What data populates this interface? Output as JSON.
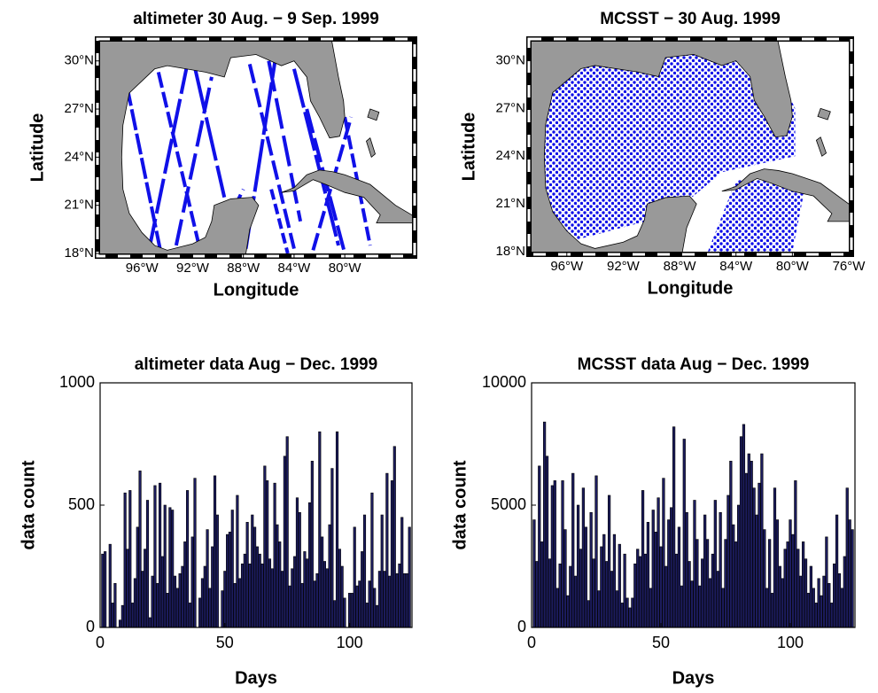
{
  "chart_data": [
    {
      "type": "map",
      "title": "altimeter 30 Aug. − 9 Sep. 1999",
      "xlabel": "Longitude",
      "ylabel": "Latitude",
      "xlim": [
        -99.3,
        -74.7
      ],
      "ylim": [
        18,
        31.2
      ],
      "xticks": [
        {
          "value": -96,
          "label": "96°W"
        },
        {
          "value": -92,
          "label": "92°W"
        },
        {
          "value": -88,
          "label": "88°W"
        },
        {
          "value": -84,
          "label": "84°W"
        },
        {
          "value": -80,
          "label": "80°W"
        }
      ],
      "yticks": [
        {
          "value": 18,
          "label": "18°N"
        },
        {
          "value": 21,
          "label": "21°N"
        },
        {
          "value": 24,
          "label": "24°N"
        },
        {
          "value": 27,
          "label": "27°N"
        },
        {
          "value": 30,
          "label": "30°N"
        }
      ],
      "color": "#1010e8"
    },
    {
      "type": "map",
      "title": "MCSST − 30 Aug. 1999",
      "xlabel": "Longitude",
      "ylabel": "Latitude",
      "xlim": [
        -98.5,
        -76
      ],
      "ylim": [
        18,
        31.2
      ],
      "xticks": [
        {
          "value": -96,
          "label": "96°W"
        },
        {
          "value": -92,
          "label": "92°W"
        },
        {
          "value": -88,
          "label": "88°W"
        },
        {
          "value": -84,
          "label": "84°W"
        },
        {
          "value": -80,
          "label": "80°W"
        },
        {
          "value": -76,
          "label": "76°W"
        }
      ],
      "yticks": [
        {
          "value": 18,
          "label": "18°N"
        },
        {
          "value": 21,
          "label": "21°N"
        },
        {
          "value": 24,
          "label": "24°N"
        },
        {
          "value": 27,
          "label": "27°N"
        },
        {
          "value": 30,
          "label": "30°N"
        }
      ],
      "color": "#1010e8"
    },
    {
      "type": "bar",
      "title": "altimeter data Aug − Dec. 1999",
      "xlabel": "Days",
      "ylabel": "data count",
      "xlim": [
        0,
        125
      ],
      "ylim": [
        0,
        1000
      ],
      "xticks": [
        0,
        50,
        100
      ],
      "yticks": [
        0,
        500,
        1000
      ],
      "color": "#1c1c5e",
      "x": [
        1,
        2,
        3,
        4,
        5,
        6,
        7,
        8,
        9,
        10,
        11,
        12,
        13,
        14,
        15,
        16,
        17,
        18,
        19,
        20,
        21,
        22,
        23,
        24,
        25,
        26,
        27,
        28,
        29,
        30,
        31,
        32,
        33,
        34,
        35,
        36,
        37,
        38,
        39,
        40,
        41,
        42,
        43,
        44,
        45,
        46,
        47,
        48,
        49,
        50,
        51,
        52,
        53,
        54,
        55,
        56,
        57,
        58,
        59,
        60,
        61,
        62,
        63,
        64,
        65,
        66,
        67,
        68,
        69,
        70,
        71,
        72,
        73,
        74,
        75,
        76,
        77,
        78,
        79,
        80,
        81,
        82,
        83,
        84,
        85,
        86,
        87,
        88,
        89,
        90,
        91,
        92,
        93,
        94,
        95,
        96,
        97,
        98,
        99,
        100,
        101,
        102,
        103,
        104,
        105,
        106,
        107,
        108,
        109,
        110,
        111,
        112,
        113,
        114,
        115,
        116,
        117,
        118,
        119,
        120,
        121,
        122,
        123,
        124
      ],
      "values": [
        300,
        310,
        0,
        340,
        100,
        180,
        0,
        30,
        90,
        550,
        320,
        560,
        100,
        200,
        410,
        640,
        230,
        320,
        520,
        40,
        210,
        580,
        180,
        590,
        290,
        500,
        140,
        490,
        480,
        210,
        160,
        220,
        250,
        350,
        560,
        100,
        370,
        610,
        0,
        120,
        200,
        250,
        400,
        160,
        330,
        620,
        460,
        0,
        150,
        230,
        380,
        390,
        480,
        180,
        540,
        200,
        260,
        300,
        430,
        260,
        460,
        410,
        330,
        300,
        260,
        660,
        600,
        280,
        240,
        590,
        420,
        350,
        230,
        700,
        780,
        170,
        240,
        290,
        530,
        470,
        180,
        310,
        280,
        510,
        680,
        190,
        220,
        800,
        370,
        270,
        240,
        420,
        650,
        110,
        800,
        320,
        250,
        120,
        0,
        140,
        140,
        410,
        170,
        190,
        310,
        460,
        100,
        190,
        550,
        160,
        90,
        230,
        460,
        230,
        630,
        210,
        600,
        740,
        220,
        260,
        450,
        220,
        220,
        410
      ]
    },
    {
      "type": "bar",
      "title": "MCSST data Aug − Dec. 1999",
      "xlabel": "Days",
      "ylabel": "data count",
      "xlim": [
        0,
        125
      ],
      "ylim": [
        0,
        10000
      ],
      "xticks": [
        0,
        50,
        100
      ],
      "yticks": [
        0,
        5000,
        10000
      ],
      "color": "#1c1c5e",
      "x": [
        1,
        2,
        3,
        4,
        5,
        6,
        7,
        8,
        9,
        10,
        11,
        12,
        13,
        14,
        15,
        16,
        17,
        18,
        19,
        20,
        21,
        22,
        23,
        24,
        25,
        26,
        27,
        28,
        29,
        30,
        31,
        32,
        33,
        34,
        35,
        36,
        37,
        38,
        39,
        40,
        41,
        42,
        43,
        44,
        45,
        46,
        47,
        48,
        49,
        50,
        51,
        52,
        53,
        54,
        55,
        56,
        57,
        58,
        59,
        60,
        61,
        62,
        63,
        64,
        65,
        66,
        67,
        68,
        69,
        70,
        71,
        72,
        73,
        74,
        75,
        76,
        77,
        78,
        79,
        80,
        81,
        82,
        83,
        84,
        85,
        86,
        87,
        88,
        89,
        90,
        91,
        92,
        93,
        94,
        95,
        96,
        97,
        98,
        99,
        100,
        101,
        102,
        103,
        104,
        105,
        106,
        107,
        108,
        109,
        110,
        111,
        112,
        113,
        114,
        115,
        116,
        117,
        118,
        119,
        120,
        121,
        122,
        123,
        124
      ],
      "values": [
        4400,
        2700,
        6600,
        3500,
        8400,
        7000,
        2800,
        5800,
        6000,
        1600,
        2600,
        6000,
        4000,
        1300,
        2500,
        6300,
        2100,
        5000,
        3200,
        5700,
        4100,
        1100,
        4700,
        2800,
        6200,
        1500,
        3300,
        3800,
        2700,
        5400,
        2300,
        3800,
        1500,
        3400,
        1000,
        3000,
        1200,
        800,
        1200,
        2600,
        3200,
        2900,
        5600,
        3000,
        4300,
        1600,
        4800,
        3900,
        5300,
        3300,
        6100,
        2500,
        4400,
        4900,
        8200,
        3000,
        4100,
        1700,
        7700,
        4700,
        2700,
        1900,
        5200,
        3600,
        1700,
        2800,
        4600,
        3600,
        2000,
        3000,
        5200,
        2300,
        4700,
        1600,
        3600,
        5400,
        6800,
        4200,
        3500,
        5000,
        7800,
        8300,
        6300,
        7100,
        6800,
        5700,
        4600,
        5900,
        7100,
        4000,
        1600,
        3600,
        1400,
        5700,
        4400,
        2500,
        2000,
        3200,
        3500,
        4400,
        3800,
        6000,
        3200,
        2100,
        3500,
        2800,
        1400,
        2500,
        1600,
        1000,
        2000,
        1300,
        2100,
        3700,
        1800,
        1000,
        2600,
        4600,
        2200,
        1600,
        2900,
        5700,
        4400,
        4000
      ]
    }
  ]
}
